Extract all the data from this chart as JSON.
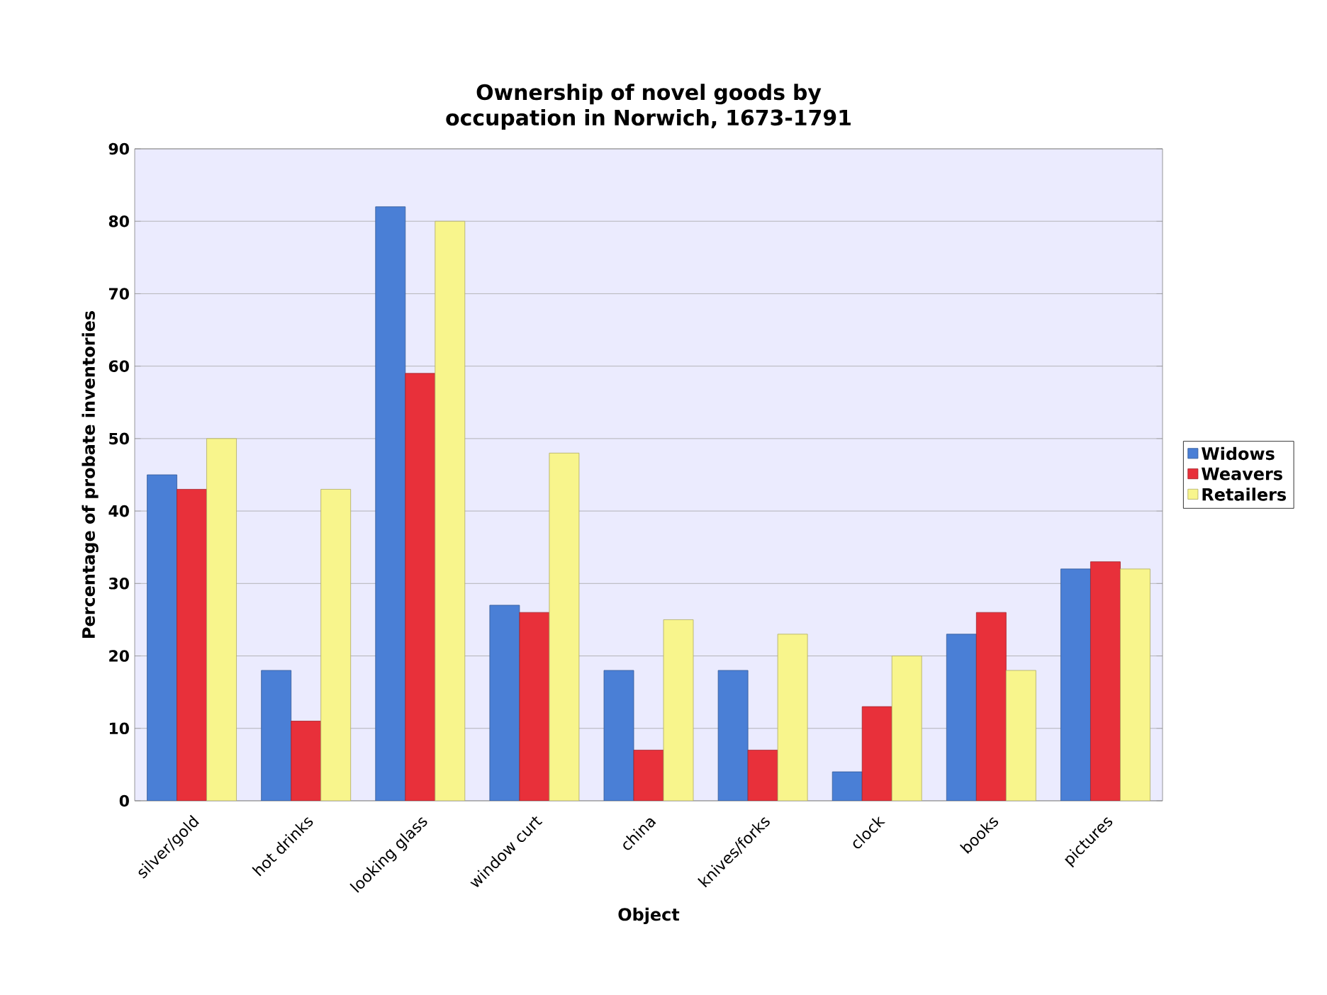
{
  "chart_data": {
    "type": "bar",
    "title": "Ownership of novel goods by occupation in Norwich, 1673-1791",
    "xlabel": "Object",
    "ylabel": "Percentage of probate inventories",
    "categories": [
      "silver/gold",
      "hot drinks",
      "looking glass",
      "window curt",
      "china",
      "knives/forks",
      "clock",
      "books",
      "pictures"
    ],
    "series": [
      {
        "name": "Widows",
        "color": "#4a7fd6",
        "values": [
          45,
          18,
          82,
          27,
          18,
          18,
          4,
          23,
          32
        ]
      },
      {
        "name": "Weavers",
        "color": "#e8303a",
        "values": [
          43,
          11,
          59,
          26,
          7,
          7,
          13,
          26,
          33
        ]
      },
      {
        "name": "Retailers",
        "color": "#f8f58c",
        "values": [
          50,
          43,
          80,
          48,
          25,
          23,
          20,
          18,
          32
        ]
      }
    ],
    "ylim": [
      0,
      90
    ],
    "yticks": [
      0,
      10,
      20,
      30,
      40,
      50,
      60,
      70,
      80,
      90
    ],
    "grid": "y",
    "legend": "right"
  }
}
